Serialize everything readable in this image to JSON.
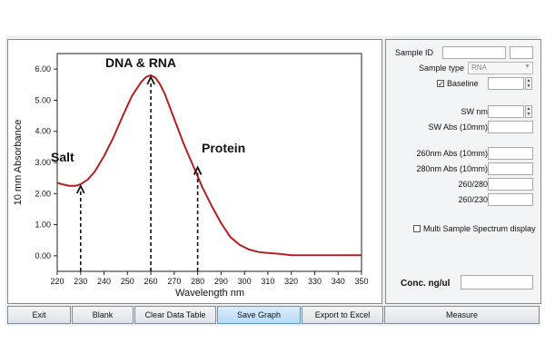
{
  "graph": {
    "y_axis_label": "10 mm Absorbance",
    "x_axis_label": "Wavelength nm",
    "annotations": {
      "dna_rna": "DNA & RNA",
      "salt": "Salt",
      "protein": "Protein"
    }
  },
  "chart_data": {
    "type": "line",
    "xlabel": "Wavelength nm",
    "ylabel": "10 mm Absorbance",
    "xlim": [
      220,
      350
    ],
    "ylim": [
      -0.5,
      6.5
    ],
    "x_ticks": [
      "220",
      "230",
      "240",
      "250",
      "260",
      "270",
      "280",
      "290",
      "300",
      "310",
      "320",
      "330",
      "340",
      "350"
    ],
    "y_ticks": [
      "0.00",
      "1.00",
      "2.00",
      "3.00",
      "4.00",
      "5.00",
      "6.00"
    ],
    "series": [
      {
        "name": "Absorbance",
        "color": "#b22222",
        "x": [
          220,
          222,
          225,
          228,
          230,
          233,
          236,
          240,
          244,
          248,
          252,
          256,
          258,
          260,
          262,
          264,
          266,
          270,
          274,
          278,
          282,
          286,
          290,
          294,
          298,
          302,
          306,
          310,
          315,
          320,
          325,
          330,
          335,
          340,
          345,
          350
        ],
        "y": [
          2.35,
          2.3,
          2.25,
          2.25,
          2.3,
          2.45,
          2.7,
          3.2,
          3.8,
          4.5,
          5.15,
          5.6,
          5.75,
          5.8,
          5.72,
          5.5,
          5.2,
          4.4,
          3.6,
          2.9,
          2.2,
          1.6,
          1.05,
          0.6,
          0.35,
          0.2,
          0.12,
          0.09,
          0.06,
          0.02,
          0.02,
          0.02,
          0.02,
          0.02,
          0.02,
          0.02
        ]
      }
    ],
    "markers": [
      {
        "label": "Salt",
        "x": 230,
        "y": 2.3
      },
      {
        "label": "DNA & RNA",
        "x": 260,
        "y": 5.8
      },
      {
        "label": "Protein",
        "x": 280,
        "y": 2.9
      }
    ]
  },
  "side": {
    "sample_id_label": "Sample ID",
    "sample_type_label": "Sample type",
    "sample_type_value": "RNA",
    "baseline_label": "Baseline",
    "baseline_checked": "✓",
    "sw_nm_label": "SW nm",
    "sw_abs_label": "SW Abs (10mm)",
    "abs260_label": "260nm Abs (10mm)",
    "abs280_label": "280nm Abs (10mm)",
    "ratio_260_280_label": "260/280",
    "ratio_260_230_label": "260/230",
    "multi_sample_label": "Multi Sample Spectrum display",
    "conc_label": "Conc. ng/ul"
  },
  "buttons": {
    "exit": "Exit",
    "blank": "Blank",
    "clear": "Clear Data Table",
    "save": "Save Graph",
    "export": "Export to Excel",
    "measure": "Measure"
  }
}
